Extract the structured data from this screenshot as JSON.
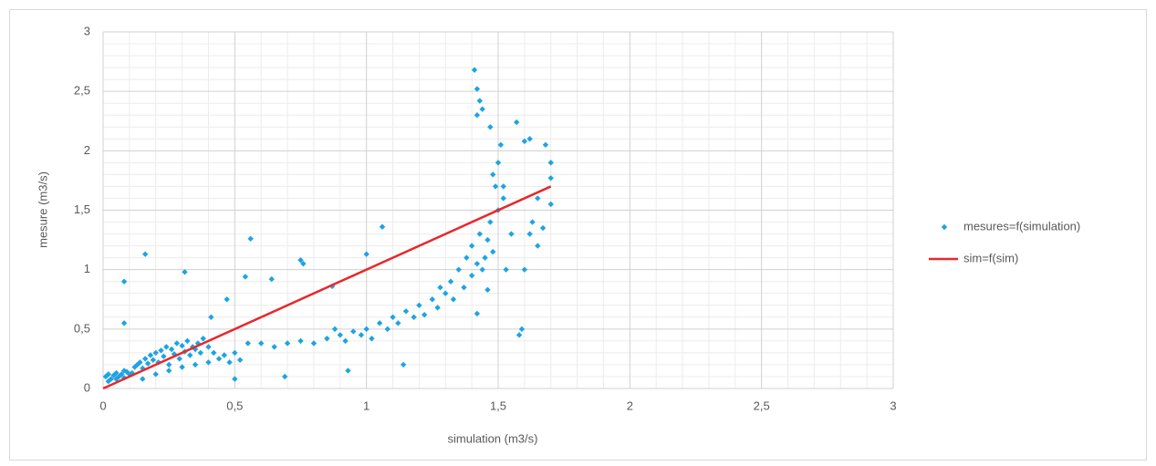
{
  "chart_data": {
    "type": "scatter",
    "x_label": "simulation (m3/s)",
    "y_label": "mesure  (m3/s)",
    "xlim": [
      0,
      3
    ],
    "ylim": [
      0,
      3
    ],
    "xticks": [
      0,
      {
        "value": 0.5,
        "label": "0,5"
      },
      1,
      {
        "value": 1.5,
        "label": "1,5"
      },
      2,
      {
        "value": 2.5,
        "label": "2,5"
      },
      3
    ],
    "yticks": [
      0,
      {
        "value": 0.5,
        "label": "0,5"
      },
      1,
      {
        "value": 1.5,
        "label": "1,5"
      },
      2,
      {
        "value": 2.5,
        "label": "2,5"
      },
      3
    ],
    "grid": true,
    "minor_grid": true,
    "legend": "right",
    "series": [
      {
        "name": "mesures=f(simulation)",
        "color": "#1ea3e3",
        "mode": "markers",
        "x": [
          0.01,
          0.02,
          0.03,
          0.04,
          0.05,
          0.06,
          0.07,
          0.08,
          0.09,
          0.1,
          0.02,
          0.05,
          0.08,
          0.11,
          0.12,
          0.13,
          0.14,
          0.15,
          0.16,
          0.17,
          0.18,
          0.19,
          0.2,
          0.21,
          0.22,
          0.23,
          0.24,
          0.25,
          0.26,
          0.27,
          0.28,
          0.29,
          0.3,
          0.31,
          0.32,
          0.33,
          0.34,
          0.35,
          0.36,
          0.37,
          0.38,
          0.4,
          0.42,
          0.44,
          0.46,
          0.48,
          0.5,
          0.5,
          0.52,
          0.15,
          0.2,
          0.25,
          0.3,
          0.35,
          0.4,
          0.08,
          0.08,
          0.16,
          0.31,
          0.41,
          0.47,
          0.54,
          0.56,
          0.64,
          0.69,
          0.75,
          0.76,
          0.87,
          1.0,
          1.06,
          1.14,
          0.93,
          0.55,
          0.6,
          0.65,
          0.7,
          0.75,
          0.8,
          0.85,
          0.88,
          0.9,
          0.92,
          0.95,
          0.98,
          1.0,
          1.02,
          1.05,
          1.08,
          1.1,
          1.12,
          1.15,
          1.18,
          1.2,
          1.22,
          1.25,
          1.27,
          1.28,
          1.3,
          1.32,
          1.33,
          1.35,
          1.37,
          1.38,
          1.4,
          1.4,
          1.42,
          1.42,
          1.43,
          1.44,
          1.45,
          1.46,
          1.47,
          1.48,
          1.49,
          1.5,
          1.5,
          1.51,
          1.52,
          1.53,
          1.48,
          1.47,
          1.41,
          1.42,
          1.43,
          1.44,
          1.42,
          1.57,
          1.55,
          1.58,
          1.59,
          1.6,
          1.62,
          1.63,
          1.65,
          1.67,
          1.68,
          1.7,
          1.7,
          1.7,
          1.62,
          1.6,
          1.65,
          1.52,
          1.46
        ],
        "values": [
          0.1,
          0.12,
          0.08,
          0.11,
          0.13,
          0.1,
          0.12,
          0.09,
          0.14,
          0.12,
          0.06,
          0.08,
          0.15,
          0.13,
          0.18,
          0.2,
          0.22,
          0.17,
          0.25,
          0.21,
          0.28,
          0.24,
          0.3,
          0.22,
          0.32,
          0.27,
          0.35,
          0.2,
          0.33,
          0.29,
          0.38,
          0.25,
          0.36,
          0.31,
          0.4,
          0.28,
          0.35,
          0.33,
          0.38,
          0.3,
          0.42,
          0.35,
          0.3,
          0.25,
          0.28,
          0.22,
          0.3,
          0.08,
          0.24,
          0.08,
          0.12,
          0.15,
          0.18,
          0.2,
          0.22,
          0.9,
          0.55,
          1.13,
          0.98,
          0.6,
          0.75,
          0.94,
          1.26,
          0.92,
          0.1,
          1.08,
          1.05,
          0.86,
          1.13,
          1.36,
          0.2,
          0.15,
          0.38,
          0.38,
          0.35,
          0.38,
          0.4,
          0.38,
          0.42,
          0.5,
          0.45,
          0.4,
          0.48,
          0.45,
          0.5,
          0.42,
          0.55,
          0.5,
          0.6,
          0.55,
          0.65,
          0.6,
          0.7,
          0.62,
          0.75,
          0.68,
          0.85,
          0.8,
          0.9,
          0.75,
          1.0,
          0.85,
          1.1,
          0.95,
          1.2,
          1.05,
          0.63,
          1.3,
          1.0,
          1.1,
          0.83,
          1.4,
          1.15,
          1.7,
          1.9,
          1.5,
          2.05,
          1.6,
          1.0,
          1.8,
          2.2,
          2.68,
          2.52,
          2.42,
          2.35,
          2.3,
          2.24,
          1.3,
          0.45,
          0.5,
          1.0,
          1.3,
          1.4,
          1.2,
          1.35,
          2.05,
          1.9,
          1.55,
          1.77,
          2.1,
          2.08,
          1.6,
          1.7,
          1.25
        ]
      },
      {
        "name": "sim=f(sim)",
        "color": "#e8282b",
        "mode": "line",
        "x": [
          0,
          1.7
        ],
        "values": [
          0,
          1.7
        ]
      }
    ]
  }
}
